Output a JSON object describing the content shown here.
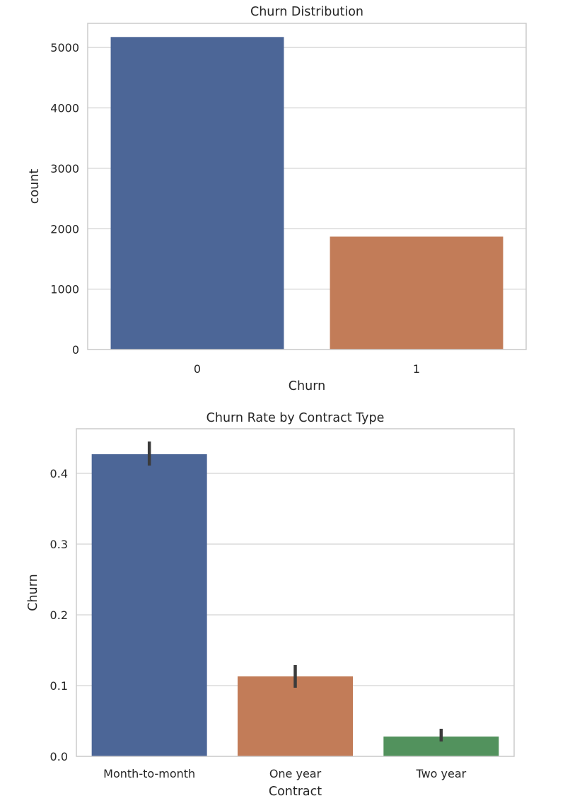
{
  "chart_data": [
    {
      "type": "bar",
      "title": "Churn Distribution",
      "xlabel": "Churn",
      "ylabel": "count",
      "categories": [
        "0",
        "1"
      ],
      "values": [
        5174,
        1869
      ],
      "colors": [
        "#4c6697",
        "#c27c58"
      ],
      "ylim": [
        0,
        5400
      ],
      "yticks": [
        0,
        1000,
        2000,
        3000,
        4000,
        5000
      ],
      "ytick_labels": [
        "0",
        "1000",
        "2000",
        "3000",
        "4000",
        "5000"
      ],
      "grid": "horizontal",
      "error_bars": null
    },
    {
      "type": "bar",
      "title": "Churn Rate by Contract Type",
      "xlabel": "Contract",
      "ylabel": "Churn",
      "categories": [
        "Month-to-month",
        "One year",
        "Two year"
      ],
      "values": [
        0.427,
        0.113,
        0.028
      ],
      "error_low": [
        0.411,
        0.097,
        0.021
      ],
      "error_high": [
        0.445,
        0.129,
        0.039
      ],
      "colors": [
        "#4c6697",
        "#c27c58",
        "#52925d"
      ],
      "ylim": [
        0,
        0.463
      ],
      "yticks": [
        0.0,
        0.1,
        0.2,
        0.3,
        0.4
      ],
      "ytick_labels": [
        "0.0",
        "0.1",
        "0.2",
        "0.3",
        "0.4"
      ],
      "grid": "horizontal",
      "error_bars": "ci"
    }
  ]
}
